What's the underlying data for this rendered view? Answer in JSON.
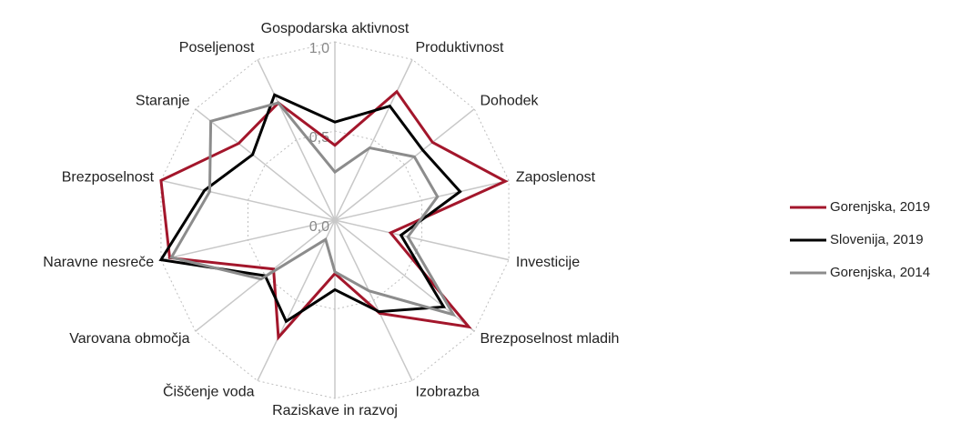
{
  "chart_data": {
    "type": "radar",
    "categories": [
      "Gospodarska aktivnost",
      "Produktivnost",
      "Dohodek",
      "Zaposlenost",
      "Investicije",
      "Brezposelnost mladih",
      "Izobrazba",
      "Raziskave in razvoj",
      "Čiščenje voda",
      "Varovana območja",
      "Naravne nesreče",
      "Brezposelnost",
      "Staranje",
      "Poseljenost"
    ],
    "series": [
      {
        "name": "Gorenjska, 2019",
        "color": "#a3162b",
        "values": [
          0.42,
          0.8,
          0.7,
          0.98,
          0.32,
          0.96,
          0.58,
          0.3,
          0.73,
          0.44,
          0.95,
          1.0,
          0.69,
          0.73
        ]
      },
      {
        "name": "Slovenija, 2019",
        "color": "#000000",
        "values": [
          0.55,
          0.71,
          0.63,
          0.72,
          0.38,
          0.78,
          0.57,
          0.39,
          0.63,
          0.5,
          1.0,
          0.75,
          0.59,
          0.78
        ]
      },
      {
        "name": "Gorenjska, 2014",
        "color": "#8c8c8c",
        "values": [
          0.27,
          0.45,
          0.57,
          0.59,
          0.42,
          0.85,
          0.44,
          0.29,
          0.12,
          0.53,
          0.94,
          0.72,
          0.89,
          0.73
        ]
      }
    ],
    "ylim": [
      0,
      1
    ],
    "yticks": [
      {
        "value": 0,
        "label": "0,0"
      },
      {
        "value": 0.5,
        "label": "0,5"
      },
      {
        "value": 1,
        "label": "1,0"
      }
    ],
    "grid": true,
    "legend": "right"
  }
}
